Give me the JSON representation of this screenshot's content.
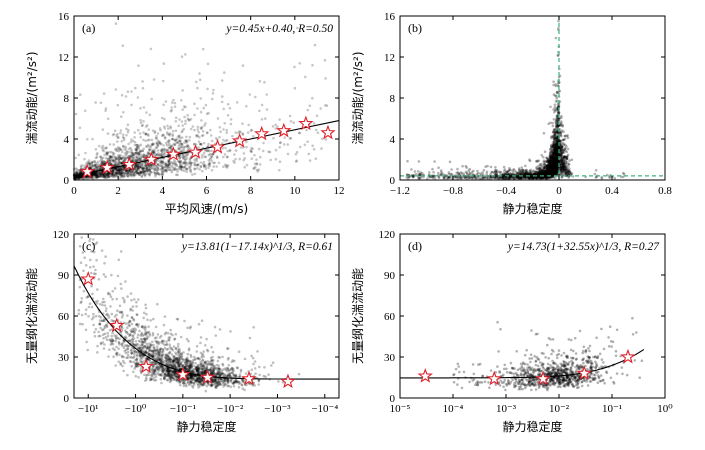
{
  "chart_data": [
    {
      "type": "scatter",
      "panel_label": "(a)",
      "annotation": "y=0.45x+0.40, R=0.50",
      "xlabel": "平均风速/(m/s)",
      "ylabel": "湍流动能/(m²/s²)",
      "xlim": [
        0,
        12
      ],
      "ylim": [
        0,
        16
      ],
      "xticks": [
        0,
        2,
        4,
        6,
        8,
        10,
        12
      ],
      "yticks": [
        0,
        4,
        8,
        12,
        16
      ],
      "xtick_labels": [
        "0",
        "2",
        "4",
        "6",
        "8",
        "10",
        "12"
      ],
      "ytick_labels": [
        "0",
        "4",
        "8",
        "12",
        "16"
      ],
      "fit": {
        "slope": 0.45,
        "intercept": 0.4,
        "x_range": [
          0,
          12
        ]
      },
      "bin_means": {
        "x": [
          0.6,
          1.5,
          2.5,
          3.5,
          4.5,
          5.5,
          6.5,
          7.5,
          8.5,
          9.5,
          10.5,
          11.5
        ],
        "y": [
          0.8,
          1.2,
          1.5,
          2.0,
          2.5,
          2.7,
          3.2,
          3.8,
          4.5,
          4.8,
          5.5,
          4.6
        ]
      },
      "grid": false
    },
    {
      "type": "scatter",
      "panel_label": "(b)",
      "xlabel": "静力稳定度",
      "ylabel": "湍流动能/(m²/s²)",
      "xlim": [
        -1.2,
        0.8
      ],
      "ylim": [
        0,
        16
      ],
      "xticks": [
        -1.2,
        -0.8,
        -0.4,
        0,
        0.4,
        0.8
      ],
      "yticks": [
        0,
        4,
        8,
        12,
        16
      ],
      "xtick_labels": [
        "−1.2",
        "−0.8",
        "−0.4",
        "0",
        "0.4",
        "0.8"
      ],
      "ytick_labels": [
        "0",
        "4",
        "8",
        "12",
        "16"
      ],
      "reference_lines": [
        {
          "orientation": "vertical",
          "value": 0,
          "style": "dashed",
          "color": "#3bb27a"
        },
        {
          "orientation": "horizontal",
          "value": 0.4,
          "style": "dashed",
          "color": "#3bb27a"
        }
      ],
      "grid": false
    },
    {
      "type": "scatter",
      "panel_label": "(c)",
      "annotation": "y=13.81(1−17.14x)^1/3, R=0.61",
      "xlabel": "静力稳定度",
      "ylabel": "无量纲化湍流动能",
      "xscale": "symlog (negative)",
      "xlim": [
        -20,
        -5e-05
      ],
      "ylim": [
        0,
        120
      ],
      "xticks": [
        -10,
        -1,
        -0.1,
        -0.01,
        -0.001,
        -0.0001
      ],
      "yticks": [
        0,
        30,
        60,
        90,
        120
      ],
      "xtick_labels": [
        "−10¹",
        "−10⁰",
        "−10⁻¹",
        "−10⁻²",
        "−10⁻³",
        "−10⁻⁴"
      ],
      "ytick_labels": [
        "0",
        "30",
        "60",
        "90",
        "120"
      ],
      "fit": {
        "coef": 13.81,
        "k": -17.14,
        "exponent": 0.3333
      },
      "bin_means": {
        "x": [
          -10,
          -2.5,
          -0.6,
          -0.1,
          -0.03,
          -0.004,
          -0.0006
        ],
        "y": [
          87,
          53,
          23,
          17,
          15,
          14,
          12
        ]
      },
      "grid": false
    },
    {
      "type": "scatter",
      "panel_label": "(d)",
      "annotation": "y=14.73(1+32.55x)^1/3, R=0.27",
      "xlabel": "静力稳定度",
      "ylabel": "无量纲化湍流动能",
      "xscale": "log",
      "xlim": [
        1e-05,
        1
      ],
      "ylim": [
        0,
        120
      ],
      "xticks": [
        1e-05,
        0.0001,
        0.001,
        0.01,
        0.1,
        1
      ],
      "yticks": [
        0,
        30,
        60,
        90,
        120
      ],
      "xtick_labels": [
        "10⁻⁵",
        "10⁻⁴",
        "10⁻³",
        "10⁻²",
        "10⁻¹",
        "10⁰"
      ],
      "ytick_labels": [
        "0",
        "30",
        "60",
        "90",
        "120"
      ],
      "fit": {
        "coef": 14.73,
        "k": 32.55,
        "exponent": 0.3333
      },
      "bin_means": {
        "x": [
          3e-05,
          0.0006,
          0.005,
          0.03,
          0.2
        ],
        "y": [
          16,
          14,
          14,
          18,
          30
        ]
      },
      "grid": false
    }
  ],
  "colors": {
    "scatter": "#000000",
    "star": "#e0202a",
    "fit": "#000000",
    "reference": "#3bb27a"
  }
}
